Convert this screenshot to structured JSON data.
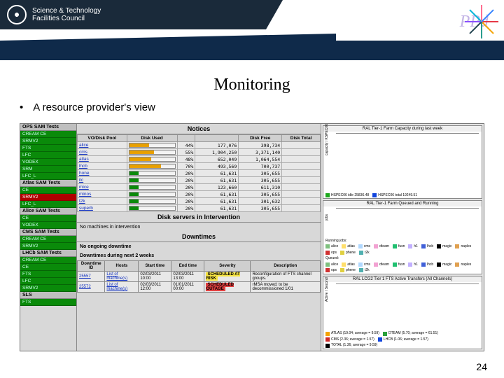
{
  "header": {
    "org_line1": "Science & Technology",
    "org_line2": "Facilities Council",
    "ppd": "PPd",
    "spark_colors": [
      "#e63946",
      "#f4a300",
      "#2a9d8f",
      "#264653",
      "#8a4fff",
      "#00b4d8",
      "#ff6f91",
      "#3a86ff"
    ]
  },
  "title": "Monitoring",
  "bullet": "A resource provider's view",
  "page_number": "24",
  "left": {
    "sections": [
      {
        "title": "OPS SAM Tests",
        "rows": [
          {
            "t": "CREAM CE",
            "c": "g"
          },
          {
            "t": "SRMV2",
            "c": "g"
          },
          {
            "t": "FTS",
            "c": "g"
          },
          {
            "t": "LFC",
            "c": "g"
          },
          {
            "t": "VODEX",
            "c": "g"
          },
          {
            "t": "SRM",
            "c": "g"
          },
          {
            "t": "LFC_L",
            "c": "g"
          }
        ]
      },
      {
        "title": "Atlas SAM Tests",
        "rows": [
          {
            "t": "CE",
            "c": "g"
          },
          {
            "t": "SRMV2",
            "c": "r"
          },
          {
            "t": "LFC_L",
            "c": "g"
          }
        ]
      },
      {
        "title": "Alice SAM Tests",
        "rows": [
          {
            "t": "CE",
            "c": "g"
          },
          {
            "t": "VODEX",
            "c": "g"
          }
        ]
      },
      {
        "title": "CMS SAM Tests",
        "rows": [
          {
            "t": "CREAM CE",
            "c": "g"
          },
          {
            "t": "SRMV2",
            "c": "g"
          }
        ]
      },
      {
        "title": "LHCb SAM Tests",
        "rows": [
          {
            "t": "CREAM CE",
            "c": "g"
          },
          {
            "t": "CE",
            "c": "g"
          },
          {
            "t": "FTS",
            "c": "g"
          },
          {
            "t": "LFC",
            "c": "g"
          },
          {
            "t": "SRMV2",
            "c": "g"
          }
        ]
      },
      {
        "title": "SLS",
        "rows": [
          {
            "t": "FTS",
            "c": "g"
          }
        ]
      }
    ]
  },
  "mid": {
    "notices_title": "Notices",
    "disk_headers": [
      "VO/Disk Pool",
      "Disk Used",
      "",
      "",
      "Disk Free",
      "Disk Total"
    ],
    "disk_rows": [
      {
        "pool": "alice",
        "pct": 44,
        "col": "#e8a000",
        "used": "177,076",
        "free": "398,734",
        "total": ""
      },
      {
        "pool": "cms",
        "pct": 55,
        "col": "#e8a000",
        "used": "1,904,250",
        "free": "3,371,140",
        "total": ""
      },
      {
        "pool": "atlas",
        "pct": 48,
        "col": "#e8a000",
        "used": "652,049",
        "free": "1,064,554",
        "total": ""
      },
      {
        "pool": "lhcb",
        "pct": 70,
        "col": "#e8a000",
        "used": "493,569",
        "free": "700,737",
        "total": ""
      },
      {
        "pool": "hone",
        "pct": 20,
        "col": "#0a8a0a",
        "used": "61,631",
        "free": "305,655",
        "total": ""
      },
      {
        "pool": "ilc",
        "pct": 20,
        "col": "#0a8a0a",
        "used": "61,631",
        "free": "305,655",
        "total": ""
      },
      {
        "pool": "mice",
        "pct": 20,
        "col": "#0a8a0a",
        "used": "123,660",
        "free": "611,310",
        "total": ""
      },
      {
        "pool": "minos",
        "pct": 20,
        "col": "#0a8a0a",
        "used": "61,631",
        "free": "305,655",
        "total": ""
      },
      {
        "pool": "t2k",
        "pct": 20,
        "col": "#0a8a0a",
        "used": "61,631",
        "free": "301,632",
        "total": ""
      },
      {
        "pool": "superb",
        "pct": 20,
        "col": "#0a8a0a",
        "used": "61,631",
        "free": "305,655",
        "total": ""
      }
    ],
    "intervention_title": "Disk servers in Intervention",
    "intervention_text": "No machines in intervention",
    "downtimes_title": "Downtimes",
    "downtimes_ongoing": "No ongoing downtime",
    "downtimes_next": "Downtimes during next 2 weeks",
    "dt_headers": [
      "Downtime ID",
      "Hosts",
      "Start time",
      "End time",
      "Severity",
      "Description"
    ],
    "dt_rows": [
      {
        "id": "25557",
        "hosts": "List of machine(s)",
        "start": "02/03/2011 10:00",
        "end": "02/03/2011 13:00",
        "sev": "SCHEDULED AT RISK",
        "sev_bg": "#f5e342",
        "desc": "Reconfiguration of FTS channel groups."
      },
      {
        "id": "25572",
        "hosts": "List of machine(s)",
        "start": "02/03/2011 12:00",
        "end": "01/01/2011 00:00",
        "sev": "SCHEDULED OUTAGE",
        "sev_bg": "#e04040",
        "desc": "rMSA moved; to be decommissioned 1/01"
      }
    ]
  },
  "charts": {
    "c1": {
      "title": "RAL Tier-1 Farm Capacity during last week",
      "ylabel": "capacity / KSPEC06",
      "bg": "#ffffff",
      "line_axis": "#666",
      "series_green": "#1ca81c",
      "series_blue": "#1044dd",
      "xlim": [
        22,
        2
      ],
      "xticks": [
        "22",
        "24",
        "26",
        "28",
        "30",
        "02"
      ],
      "ylim": [
        0,
        50
      ],
      "ytick_step": 10,
      "green_y": [
        42,
        42,
        43,
        42,
        41,
        40,
        38,
        20,
        33,
        40,
        42,
        44,
        44
      ],
      "blue_y": [
        29,
        29,
        29,
        29,
        29,
        29,
        29,
        29,
        29,
        29,
        29,
        29,
        29
      ],
      "legend": [
        {
          "label": "HSPEC06 idle",
          "color": "#1ca81c",
          "val": "25836.48"
        },
        {
          "label": "HSPEC06 total",
          "color": "#1044dd",
          "val": "19249.51"
        }
      ]
    },
    "c2": {
      "title": "RAL Tier-1 Farm Queued and Running",
      "ylabel": "jobs",
      "bg": "#ffffff",
      "xlim": [
        0,
        24
      ],
      "xticks": [
        "Tue 00:00",
        "Tue 12:00"
      ],
      "ylim": [
        0,
        6
      ],
      "yticks": [
        "0.0",
        "2.0",
        "4.0",
        "6.0"
      ],
      "stack_colors": [
        "#7ec07e",
        "#ffdf6b",
        "#b0d8ff",
        "#f2a2d2",
        "#c2b0ff",
        "#a0e8e0",
        "#8aa0ff"
      ],
      "stack_top_y": [
        4.6,
        4.5,
        4.6,
        4.4,
        3.6,
        3.9,
        4.3,
        4.5,
        4.6,
        4.4,
        4.2,
        4.6,
        4.7
      ],
      "legend_running": [
        {
          "label": "alice",
          "color": "#7ec07e"
        },
        {
          "label": "atlas",
          "color": "#ffdf6b"
        },
        {
          "label": "cms",
          "color": "#b0d8ff"
        },
        {
          "label": "dteam",
          "color": "#f2a2d2"
        },
        {
          "label": "fusn",
          "color": "#20c070"
        },
        {
          "label": "h1",
          "color": "#c2b0ff"
        },
        {
          "label": "lhcb",
          "color": "#4060d8"
        },
        {
          "label": "magic",
          "color": "#000"
        },
        {
          "label": "naples",
          "color": "#e0a050"
        },
        {
          "label": "ops",
          "color": "#d03030"
        },
        {
          "label": "phene",
          "color": "#e0d040"
        },
        {
          "label": "t2k",
          "color": "#50b0b0"
        }
      ],
      "legend_queued": [
        {
          "label": "alice",
          "color": "#7ec07e"
        },
        {
          "label": "atlas",
          "color": "#ffdf6b"
        },
        {
          "label": "cms",
          "color": "#b0d8ff"
        },
        {
          "label": "dteam",
          "color": "#f2a2d2"
        },
        {
          "label": "fusn",
          "color": "#20c070"
        },
        {
          "label": "h1",
          "color": "#c2b0ff"
        },
        {
          "label": "lhcb",
          "color": "#4060d8"
        },
        {
          "label": "magic",
          "color": "#000"
        },
        {
          "label": "naples",
          "color": "#e0a050"
        },
        {
          "label": "ops",
          "color": "#d03030"
        },
        {
          "label": "phene",
          "color": "#e0d040"
        },
        {
          "label": "t2k",
          "color": "#50b0b0"
        }
      ],
      "section_labels": {
        "running": "Running jobs:",
        "queued": "Queued:"
      }
    },
    "c3": {
      "title": "RAL LCG2 Tier 1 FTS Active Transfers (All Channels)",
      "ylabel": "Active / Second",
      "bg": "#ffffff",
      "xlim": [
        0,
        24
      ],
      "xticks": [
        "Tue 00:00",
        "Tue 12:00"
      ],
      "ylim": [
        0,
        200
      ],
      "ytick_step": 100,
      "series": [
        {
          "color": "#f4a300",
          "y": [
            90,
            140,
            110,
            70,
            120,
            160,
            115,
            60,
            150,
            200,
            120,
            40,
            90,
            130,
            80,
            160
          ]
        },
        {
          "color": "#2aa03a",
          "y": [
            20,
            35,
            28,
            14,
            30,
            60,
            34,
            10,
            55,
            90,
            34,
            8,
            30,
            50,
            18,
            55
          ]
        },
        {
          "color": "#d02828",
          "y": [
            6,
            4,
            3,
            2,
            4,
            5,
            3,
            2,
            5,
            6,
            4,
            1,
            3,
            4,
            2,
            5
          ]
        }
      ],
      "legend": [
        {
          "label": "ATLAS (19.04; average = 9.59)",
          "color": "#f4a300"
        },
        {
          "label": "DTEAM (5.70; average = 61.51)",
          "color": "#2aa03a"
        },
        {
          "label": "CMS (2.36; average = 1.57)",
          "color": "#d02828"
        },
        {
          "label": "LHCB (1.06; average = 1.57)",
          "color": "#1044dd"
        },
        {
          "label": "TOTAL (1.36; average = 9.59)",
          "color": "#000000"
        }
      ]
    }
  }
}
